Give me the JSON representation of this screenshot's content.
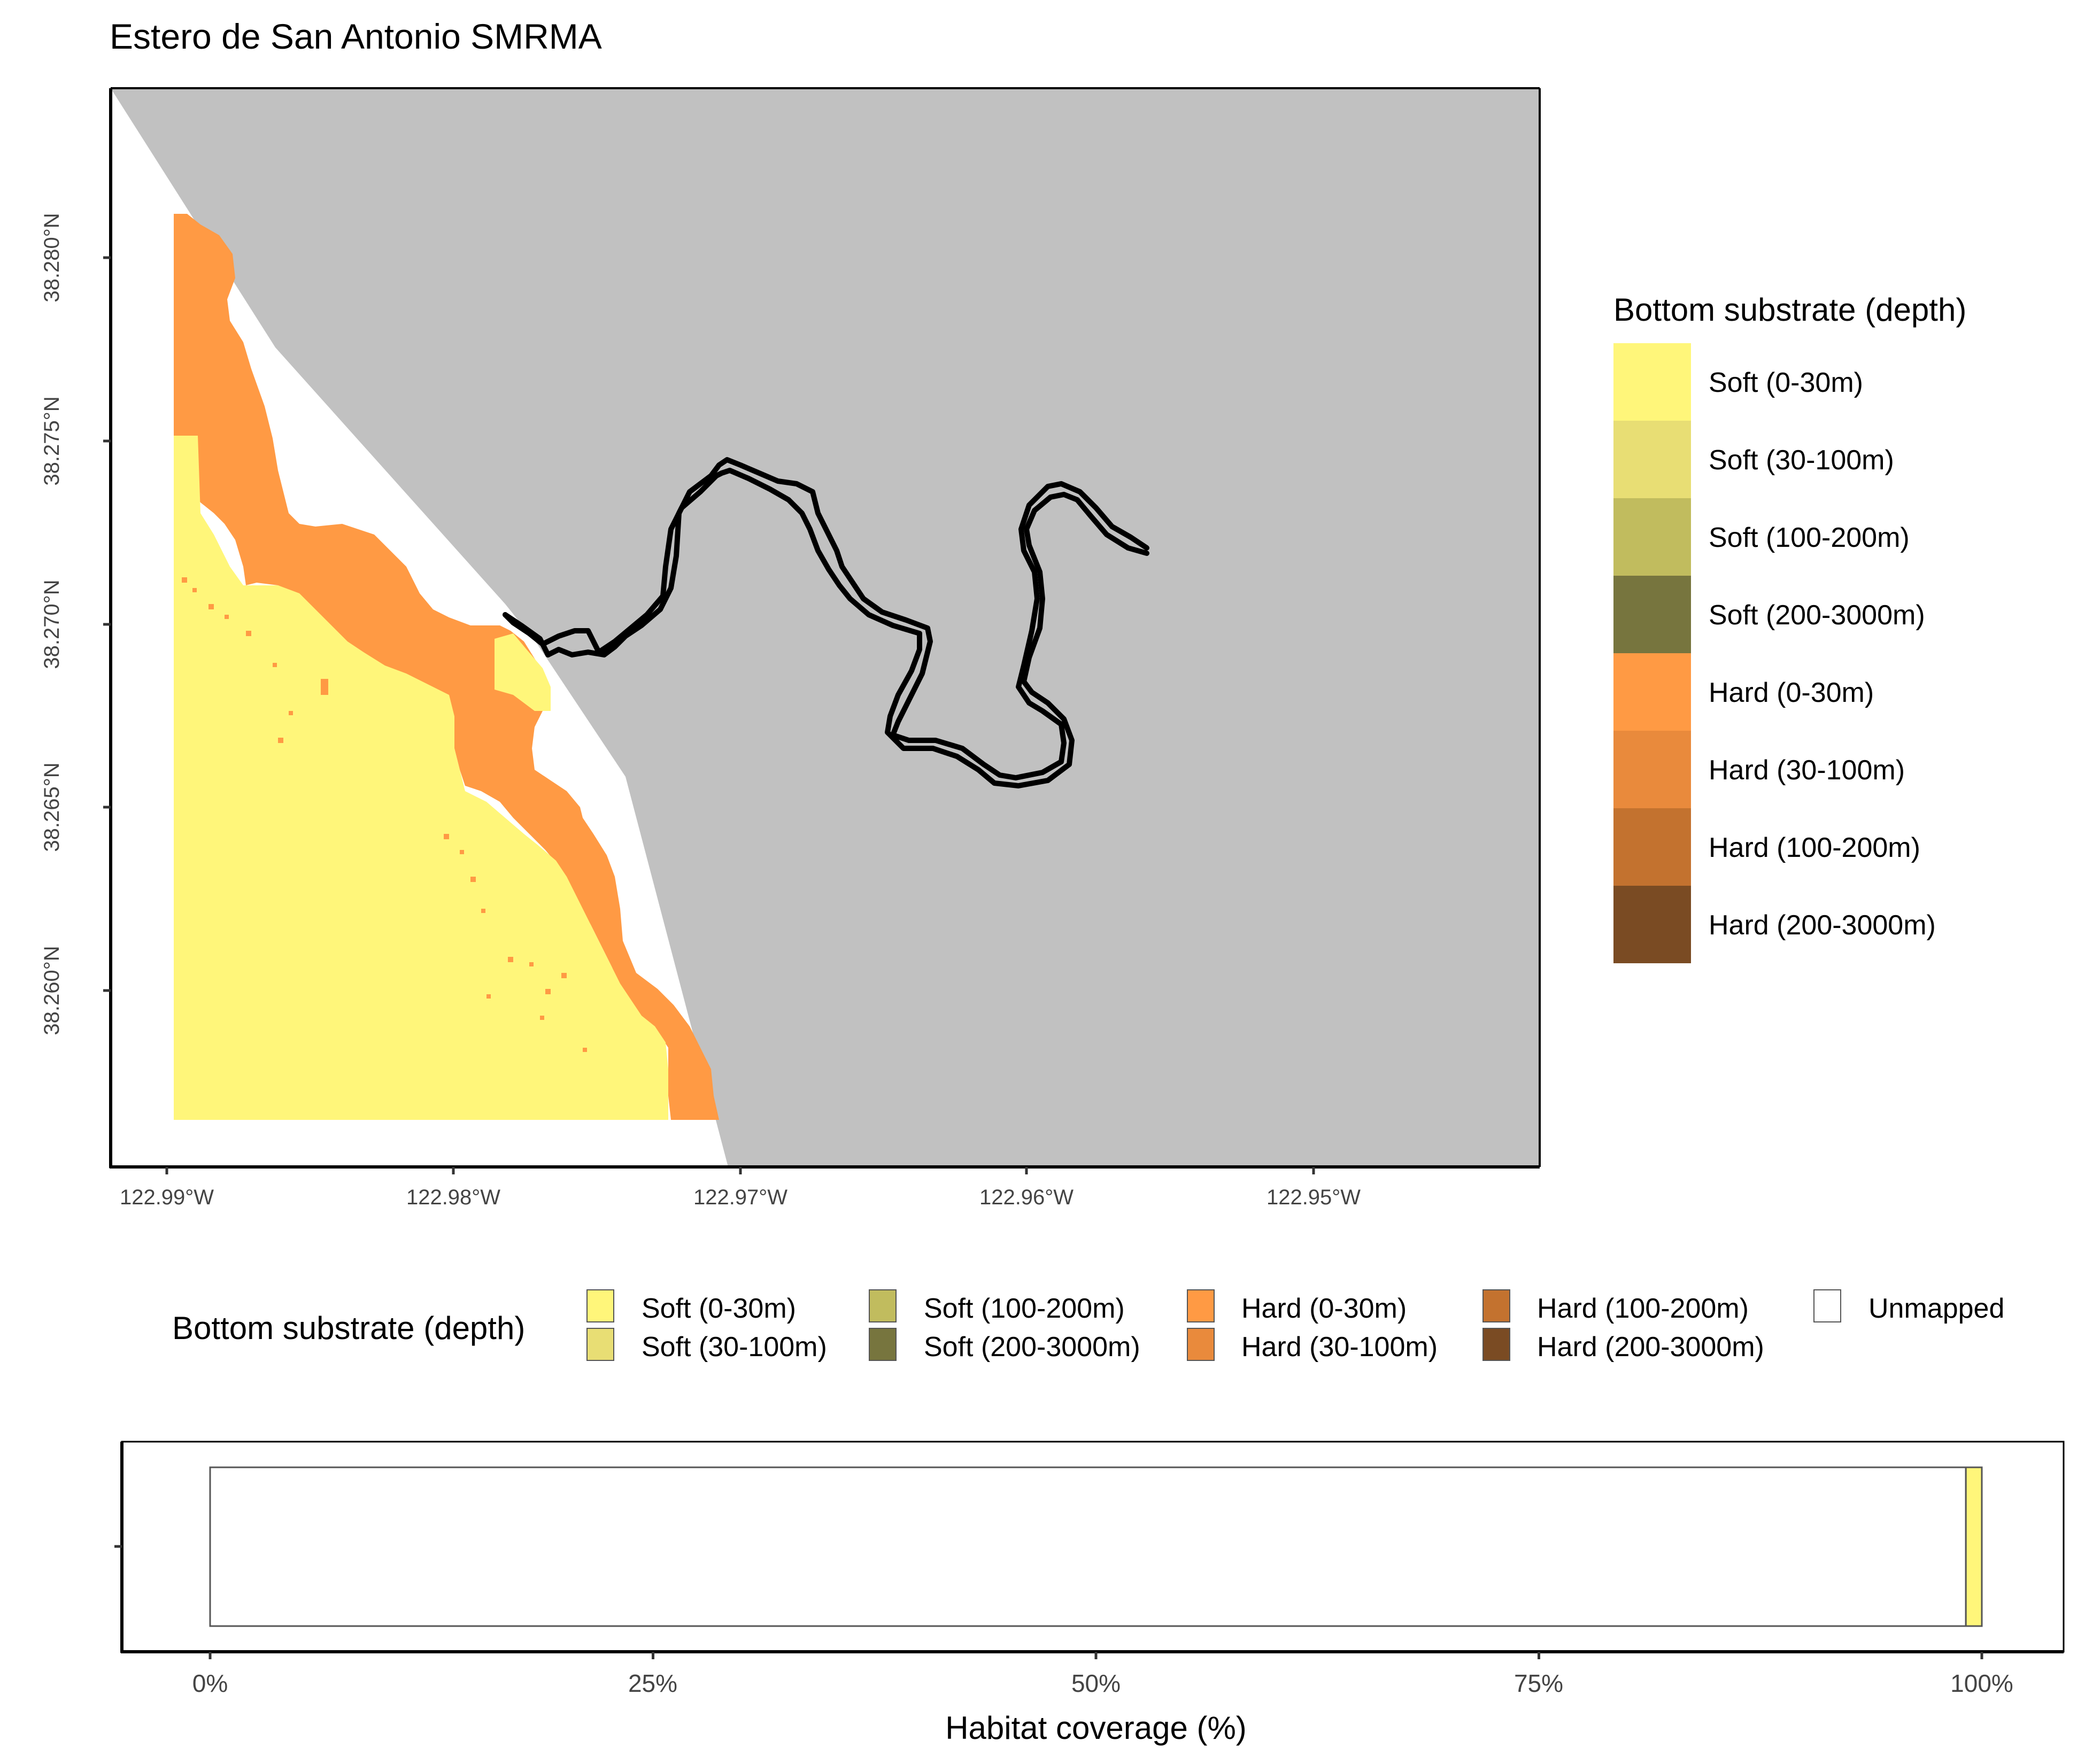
{
  "title": "Estero de San Antonio SMRMA",
  "colors": {
    "land": "#C1C1C1",
    "unmapped": "#FFFFFF",
    "boundary": "#000000",
    "soft_0_30": "#FFF67A",
    "soft_30_100": "#E8DE74",
    "soft_100_200": "#C1BC5E",
    "soft_200_3000": "#77753E",
    "hard_0_30": "#FF9A44",
    "hard_30_100": "#E98A3C",
    "hard_100_200": "#C3722F",
    "hard_200_3000": "#7A4B23"
  },
  "map": {
    "y_ticks": [
      "38.280°N",
      "38.275°N",
      "38.270°N",
      "38.265°N",
      "38.260°N"
    ],
    "x_ticks": [
      "122.99°W",
      "122.98°W",
      "122.97°W",
      "122.96°W",
      "122.95°W"
    ]
  },
  "right_legend": {
    "title": "Bottom substrate (depth)",
    "items": [
      {
        "label": "Soft (0-30m)",
        "color": "#FFF67A"
      },
      {
        "label": "Soft (30-100m)",
        "color": "#E8DE74"
      },
      {
        "label": "Soft (100-200m)",
        "color": "#C1BC5E"
      },
      {
        "label": "Soft (200-3000m)",
        "color": "#77753E"
      },
      {
        "label": "Hard (0-30m)",
        "color": "#FF9A44"
      },
      {
        "label": "Hard (30-100m)",
        "color": "#E98A3C"
      },
      {
        "label": "Hard (100-200m)",
        "color": "#C3722F"
      },
      {
        "label": "Hard (200-3000m)",
        "color": "#7A4B23"
      }
    ]
  },
  "bottom_legend": {
    "title": "Bottom substrate (depth)",
    "items": [
      {
        "label": "Soft (0-30m)",
        "color": "#FFF67A"
      },
      {
        "label": "Soft (30-100m)",
        "color": "#E8DE74"
      },
      {
        "label": "Soft (100-200m)",
        "color": "#C1BC5E"
      },
      {
        "label": "Soft (200-3000m)",
        "color": "#77753E"
      },
      {
        "label": "Hard (0-30m)",
        "color": "#FF9A44"
      },
      {
        "label": "Hard (30-100m)",
        "color": "#E98A3C"
      },
      {
        "label": "Hard (100-200m)",
        "color": "#C3722F"
      },
      {
        "label": "Hard (200-3000m)",
        "color": "#7A4B23"
      },
      {
        "label": "Unmapped",
        "color": "#FFFFFF"
      }
    ]
  },
  "chart_data": {
    "type": "bar",
    "orientation": "horizontal",
    "xlabel": "Habitat coverage (%)",
    "ylabel": "",
    "x_ticks": [
      "0%",
      "25%",
      "50%",
      "75%",
      "100%"
    ],
    "xlim": [
      0,
      100
    ],
    "series": [
      {
        "name": "Unmapped",
        "values": [
          99.1
        ],
        "color": "#FFFFFF"
      },
      {
        "name": "Soft (0-30m)",
        "values": [
          0.9
        ],
        "color": "#FFF67A"
      }
    ]
  }
}
